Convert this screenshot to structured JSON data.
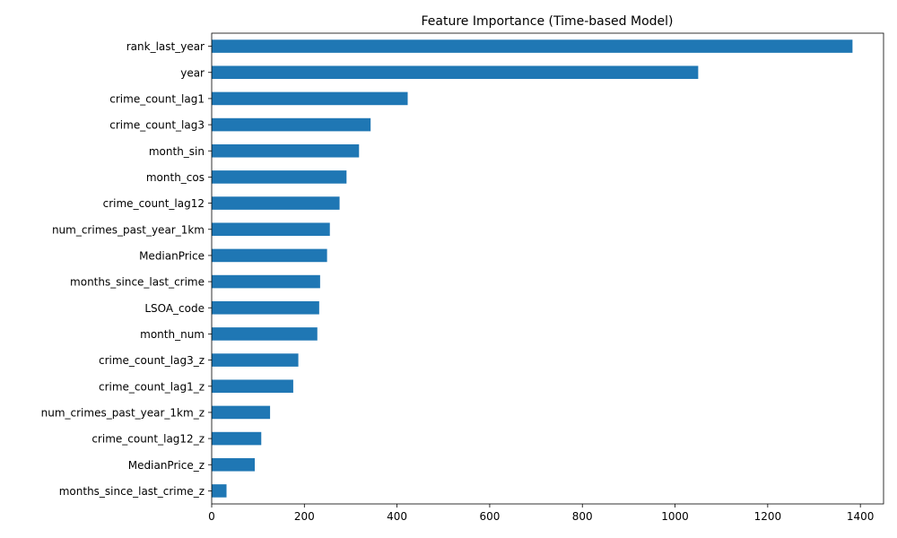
{
  "chart_data": {
    "type": "bar",
    "orientation": "horizontal",
    "title": "Feature Importance (Time-based Model)",
    "xlabel": "",
    "ylabel": "",
    "xlim": [
      0,
      1450
    ],
    "xticks": [
      0,
      200,
      400,
      600,
      800,
      1000,
      1200,
      1400
    ],
    "grid": false,
    "bar_color": "#1f77b4",
    "categories": [
      "rank_last_year",
      "year",
      "crime_count_lag1",
      "crime_count_lag3",
      "month_sin",
      "month_cos",
      "crime_count_lag12",
      "num_crimes_past_year_1km",
      "MedianPrice",
      "months_since_last_crime",
      "LSOA_code",
      "month_num",
      "crime_count_lag3_z",
      "crime_count_lag1_z",
      "num_crimes_past_year_1km_z",
      "crime_count_lag12_z",
      "MedianPrice_z",
      "months_since_last_crime_z"
    ],
    "values": [
      1383,
      1050,
      423,
      343,
      318,
      291,
      276,
      255,
      249,
      234,
      232,
      228,
      187,
      176,
      126,
      107,
      93,
      32
    ]
  }
}
